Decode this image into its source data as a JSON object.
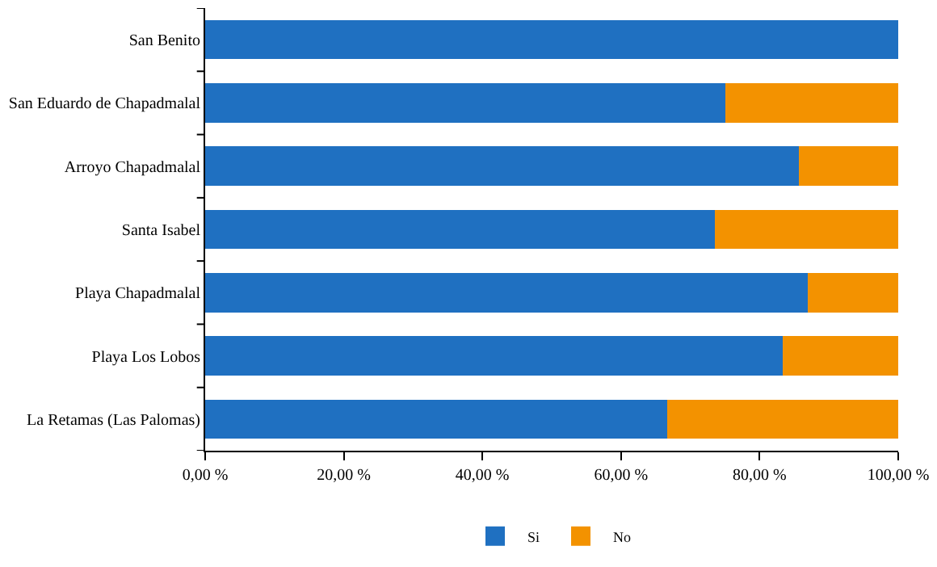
{
  "chart_data": {
    "type": "bar",
    "orientation": "horizontal",
    "stacked": true,
    "categories": [
      "San Benito",
      "San Eduardo de Chapadmalal",
      "Arroyo Chapadmalal",
      "Santa Isabel",
      "Playa Chapadmalal",
      "Playa Los Lobos",
      "La Retamas (Las Palomas)"
    ],
    "series": [
      {
        "name": "Si",
        "color": "#1f70c1",
        "values": [
          100,
          75,
          85.7,
          73.5,
          87,
          83.3,
          66.7
        ]
      },
      {
        "name": "No",
        "color": "#f39200",
        "values": [
          0,
          25,
          14.3,
          26.5,
          13,
          16.7,
          33.3
        ]
      }
    ],
    "xlim": [
      0,
      100
    ],
    "xticks": [
      {
        "value": 0,
        "label": "0,00 %"
      },
      {
        "value": 20,
        "label": "20,00 %"
      },
      {
        "value": 40,
        "label": "40,00 %"
      },
      {
        "value": 60,
        "label": "60,00 %"
      },
      {
        "value": 80,
        "label": "80,00 %"
      },
      {
        "value": 100,
        "label": "100,00 %"
      }
    ],
    "legend": "bottom"
  }
}
